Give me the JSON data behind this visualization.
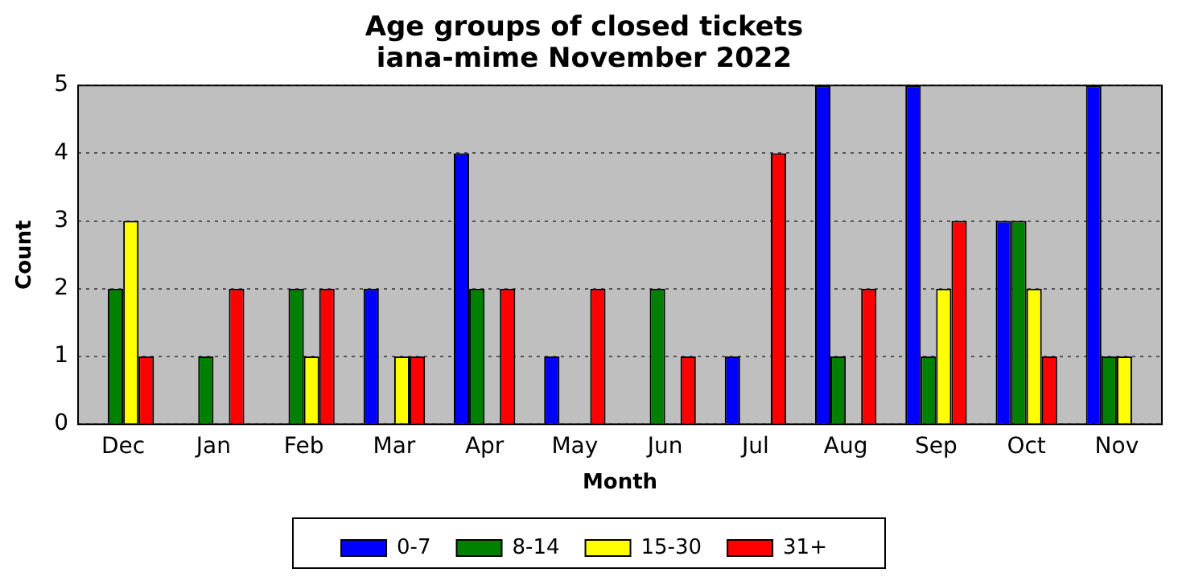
{
  "chart_data": {
    "type": "bar",
    "title": "Age groups of closed tickets\niana-mime November 2022",
    "xlabel": "Month",
    "ylabel": "Count",
    "categories": [
      "Dec",
      "Jan",
      "Feb",
      "Mar",
      "Apr",
      "May",
      "Jun",
      "Jul",
      "Aug",
      "Sep",
      "Oct",
      "Nov"
    ],
    "series": [
      {
        "name": "0-7",
        "color": "#0000ff",
        "values": [
          0,
          0,
          0,
          2,
          4,
          1,
          0,
          1,
          5,
          5,
          3,
          5
        ]
      },
      {
        "name": "8-14",
        "color": "#008000",
        "values": [
          2,
          1,
          2,
          0,
          2,
          0,
          2,
          0,
          1,
          1,
          3,
          1
        ]
      },
      {
        "name": "15-30",
        "color": "#ffff00",
        "values": [
          3,
          0,
          1,
          1,
          0,
          0,
          0,
          0,
          0,
          2,
          2,
          1
        ]
      },
      {
        "name": "31+",
        "color": "#ff0000",
        "values": [
          1,
          2,
          2,
          1,
          2,
          2,
          1,
          4,
          2,
          3,
          1,
          0
        ]
      }
    ],
    "ylim": [
      0,
      5
    ],
    "yticks": [
      0,
      1,
      2,
      3,
      4,
      5
    ],
    "grid": "y",
    "legend": "bottom"
  }
}
